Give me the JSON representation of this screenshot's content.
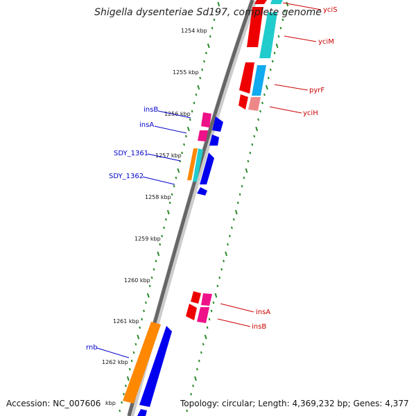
{
  "title": "Shigella dysenteriae Sd197, complete genome",
  "accession_text": "Accession: NC_007606",
  "footer_info": "Topology: circular; Length: 4,369,232 bp; Genes: 4,377",
  "colors": {
    "backbone": "#888888",
    "ticks": "#2a8a2a",
    "plus_label": "#0000cc",
    "minus_label": "#cc0000",
    "red": "#ee0000",
    "pink": "#ee1188",
    "cyan": "#22cccc",
    "skyblue": "#11aaee",
    "salmon": "#ee8888",
    "blue": "#0000ee",
    "orange": "#ff8800"
  },
  "kbp_labels": [
    "1254 kbp",
    "1255 kbp",
    "1256 kbp",
    "1257 kbp",
    "1258 kbp",
    "1259 kbp",
    "1260 kbp",
    "1261 kbp",
    "1262 kbp",
    "kbp"
  ],
  "gene_labels": [
    {
      "text": "yciS",
      "strand": "minus"
    },
    {
      "text": "yciM",
      "strand": "minus"
    },
    {
      "text": "pyrF",
      "strand": "minus"
    },
    {
      "text": "yciH",
      "strand": "minus"
    },
    {
      "text": "insB",
      "strand": "plus"
    },
    {
      "text": "insA",
      "strand": "plus"
    },
    {
      "text": "SDY_1361",
      "strand": "plus"
    },
    {
      "text": "SDY_1362",
      "strand": "plus"
    },
    {
      "text": "insA",
      "strand": "minus"
    },
    {
      "text": "insB",
      "strand": "minus"
    },
    {
      "text": "rnb",
      "strand": "plus"
    }
  ]
}
